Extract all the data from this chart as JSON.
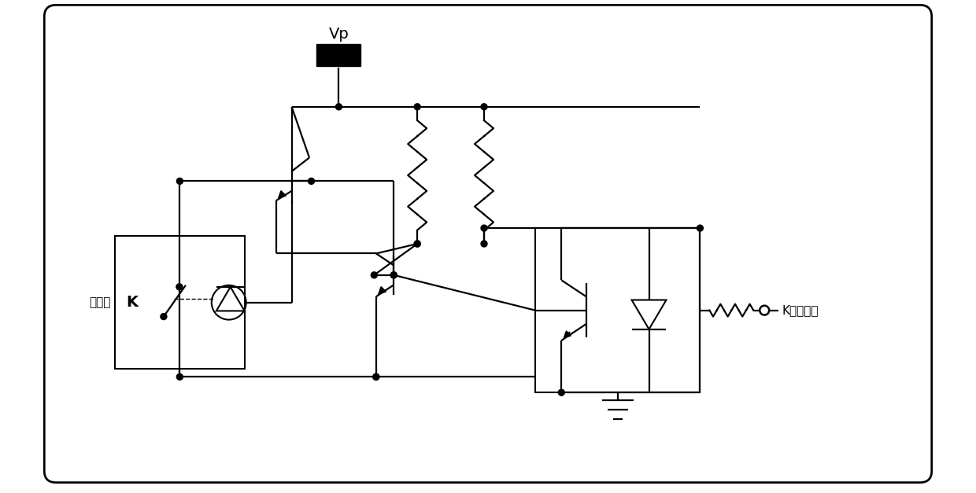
{
  "relay_label": "继电器",
  "k_label": "K",
  "vp_label": "Vp",
  "kport_label": "K控制端口",
  "lw": 1.6,
  "lw_thick": 2.0
}
